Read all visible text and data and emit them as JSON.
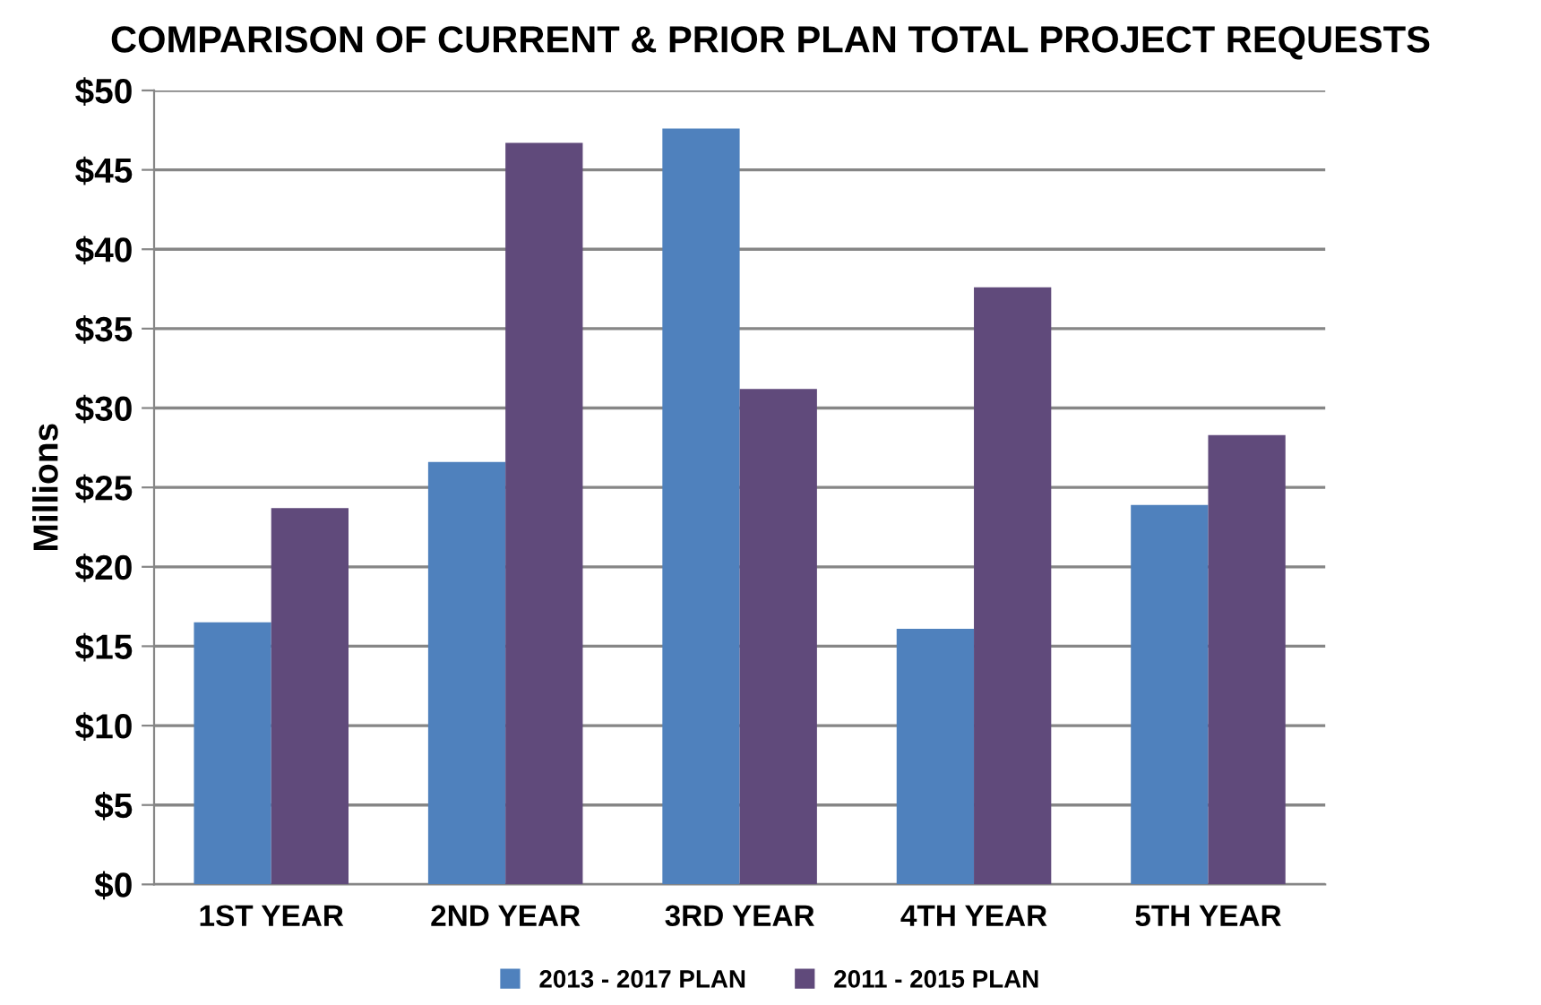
{
  "chart_data": {
    "type": "bar",
    "title": "COMPARISON OF CURRENT & PRIOR PLAN TOTAL PROJECT REQUESTS",
    "ylabel": "Millions",
    "categories": [
      "1ST YEAR",
      "2ND YEAR",
      "3RD YEAR",
      "4TH YEAR",
      "5TH YEAR"
    ],
    "series": [
      {
        "name": "2013 - 2017 PLAN",
        "color": "#4f81bd",
        "values": [
          16.5,
          26.6,
          47.6,
          16.1,
          23.9
        ]
      },
      {
        "name": "2011 - 2015 PLAN",
        "color": "#604a7b",
        "values": [
          23.7,
          46.7,
          31.2,
          37.6,
          28.3
        ]
      }
    ],
    "ylim": [
      0,
      50
    ],
    "yticks": [
      {
        "value": 0,
        "label": "$0"
      },
      {
        "value": 5,
        "label": "$5"
      },
      {
        "value": 10,
        "label": "$10"
      },
      {
        "value": 15,
        "label": "$15"
      },
      {
        "value": 20,
        "label": "$20"
      },
      {
        "value": 25,
        "label": "$25"
      },
      {
        "value": 30,
        "label": "$30"
      },
      {
        "value": 35,
        "label": "$35"
      },
      {
        "value": 40,
        "label": "$40"
      },
      {
        "value": 45,
        "label": "$45"
      },
      {
        "value": 50,
        "label": "$50"
      }
    ],
    "grid": "y",
    "legend": "bottom"
  }
}
